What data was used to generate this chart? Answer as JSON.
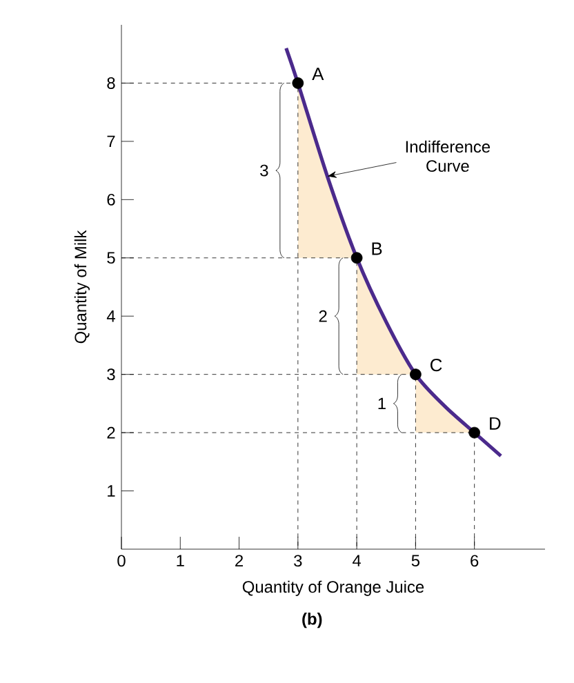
{
  "chart_data": {
    "type": "line",
    "title": "(b)",
    "xlabel": "Quantity of Orange Juice",
    "ylabel": "Quantity of Milk",
    "xlim": [
      0,
      7.2
    ],
    "ylim": [
      0,
      9
    ],
    "xticks": [
      0,
      1,
      2,
      3,
      4,
      5,
      6
    ],
    "yticks": [
      1,
      2,
      3,
      4,
      5,
      6,
      7,
      8
    ],
    "legend": false,
    "series": [
      {
        "name": "Indifference Curve",
        "color": "#4b2a8c",
        "marker": "none",
        "line_style": "solid",
        "x": [
          2.8,
          3,
          3.5,
          4,
          4.5,
          5,
          5.5,
          6,
          6.45
        ],
        "values": [
          8.6,
          8,
          6.4,
          5,
          3.9,
          3,
          2.45,
          2,
          1.6
        ]
      },
      {
        "type": "line",
        "color": "#000000",
        "marker": "none",
        "line_style": "dashed",
        "x": [
          0,
          3,
          3
        ],
        "values": [
          8,
          8,
          0
        ]
      },
      {
        "type": "line",
        "color": "#000000",
        "marker": "none",
        "line_style": "dashed",
        "x": [
          0,
          4,
          4
        ],
        "values": [
          5,
          5,
          0
        ]
      },
      {
        "type": "line",
        "color": "#000000",
        "marker": "none",
        "line_style": "dashed",
        "x": [
          0,
          5,
          5
        ],
        "values": [
          3,
          3,
          0
        ]
      },
      {
        "type": "line",
        "color": "#000000",
        "marker": "none",
        "line_style": "dashed",
        "x": [
          0,
          6,
          6
        ],
        "values": [
          2,
          2,
          0
        ]
      },
      {
        "type": "scatter",
        "color": "#000000",
        "marker": "circle",
        "x": [
          3,
          4,
          5,
          6
        ],
        "values": [
          8,
          5,
          3,
          2
        ]
      }
    ],
    "annotations": [
      {
        "text": "A",
        "x": 3,
        "y": 8
      },
      {
        "text": "B",
        "x": 4,
        "y": 5
      },
      {
        "text": "C",
        "x": 5,
        "y": 3
      },
      {
        "text": "D",
        "x": 6,
        "y": 2
      },
      "3",
      "2",
      "1"
    ]
  }
}
